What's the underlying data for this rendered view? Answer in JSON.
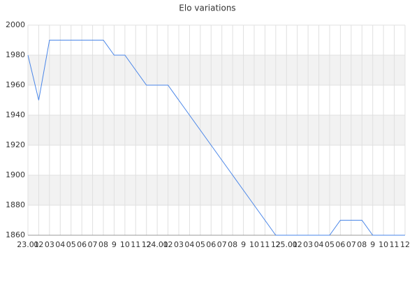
{
  "chart_data": {
    "type": "line",
    "title": "Elo variations",
    "categories": [
      "23.01",
      "02",
      "03",
      "04",
      "05",
      "06",
      "07",
      "08",
      "9",
      "10",
      "11",
      "12",
      "24.01",
      "02",
      "03",
      "04",
      "05",
      "06",
      "07",
      "08",
      "9",
      "10",
      "11",
      "12",
      "25.01",
      "02",
      "03",
      "04",
      "05",
      "06",
      "07",
      "08",
      "9",
      "10",
      "11",
      "12"
    ],
    "series": [
      {
        "name": "Elo",
        "color": "#4a86e8",
        "values": [
          1980,
          1950,
          1990,
          1990,
          1990,
          1990,
          1990,
          1990,
          1980,
          1980,
          1970,
          1960,
          1960,
          1960,
          1950,
          1940,
          1930,
          1920,
          1910,
          1900,
          1890,
          1880,
          1870,
          1860,
          1860,
          1860,
          1860,
          1860,
          1860,
          1870,
          1870,
          1870,
          1860,
          1860,
          1860,
          1860
        ]
      }
    ],
    "ylim": [
      1860,
      2000
    ],
    "yticks": [
      1860,
      1880,
      1900,
      1920,
      1940,
      1960,
      1980,
      2000
    ],
    "grid": true
  }
}
